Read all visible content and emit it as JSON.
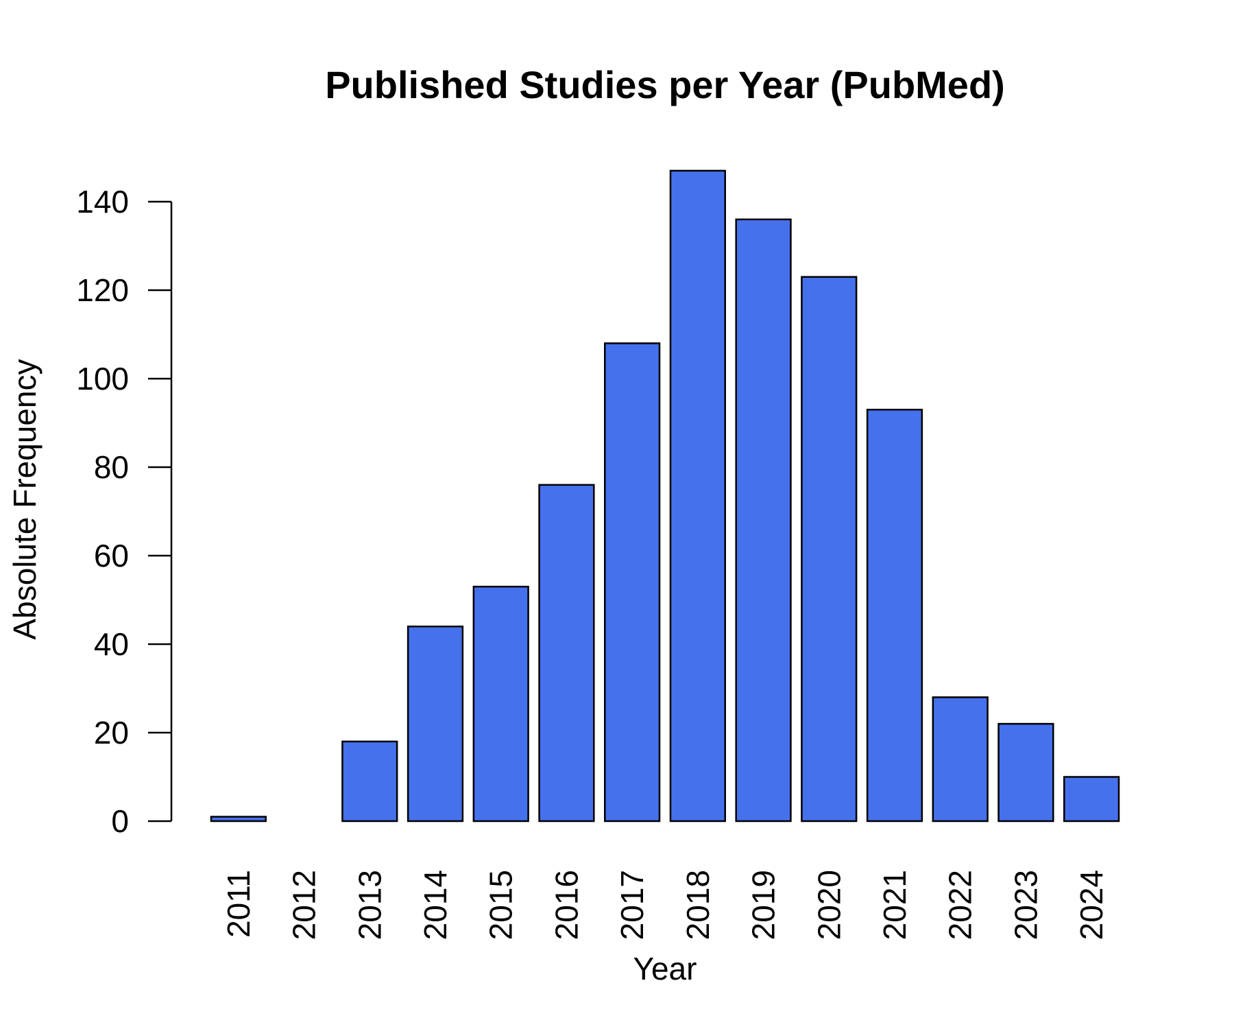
{
  "chart_data": {
    "type": "bar",
    "title": "Published Studies per Year (PubMed)",
    "xlabel": "Year",
    "ylabel": "Absolute Frequency",
    "categories": [
      "2011",
      "2012",
      "2013",
      "2014",
      "2015",
      "2016",
      "2017",
      "2018",
      "2019",
      "2020",
      "2021",
      "2022",
      "2023",
      "2024"
    ],
    "values": [
      1,
      0,
      18,
      44,
      53,
      76,
      108,
      147,
      136,
      123,
      93,
      28,
      22,
      10
    ],
    "ylim": [
      0,
      147
    ],
    "yticks": [
      0,
      20,
      40,
      60,
      80,
      100,
      120,
      140
    ],
    "bar_color": "#4571EC",
    "grid": false,
    "legend": "none"
  }
}
